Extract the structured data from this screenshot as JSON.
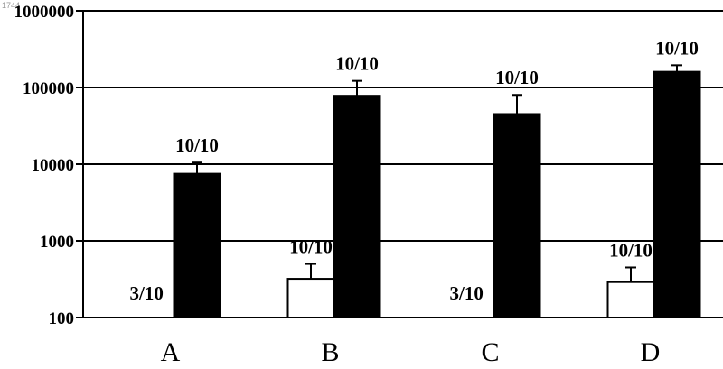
{
  "chart_data": {
    "type": "bar",
    "yscale": "log",
    "ylim": [
      100,
      1000000
    ],
    "yticks": [
      100,
      1000,
      10000,
      100000,
      1000000
    ],
    "ytick_labels": [
      "100",
      "1000",
      "10000",
      "100000",
      "1000000"
    ],
    "grid": "horizontal",
    "categories": [
      "A",
      "B",
      "C",
      "D"
    ],
    "series": [
      {
        "color": "#ffffff",
        "values": [
          null,
          320,
          null,
          290
        ],
        "error_upper": [
          null,
          500,
          null,
          450
        ],
        "labels": [
          "3/10",
          "10/10",
          "3/10",
          "10/10"
        ]
      },
      {
        "color": "#000000",
        "values": [
          7500,
          78000,
          45000,
          160000
        ],
        "error_upper": [
          10500,
          122000,
          80000,
          195000
        ],
        "labels": [
          "10/10",
          "10/10",
          "10/10",
          "10/10"
        ]
      }
    ],
    "corner_mark": "1744"
  }
}
